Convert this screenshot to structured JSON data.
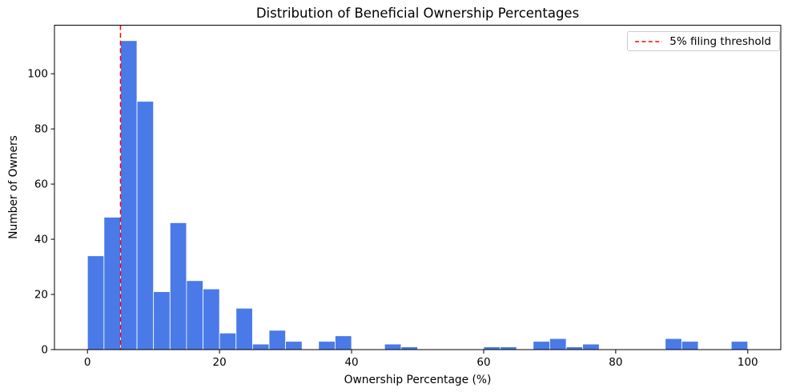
{
  "chart_data": {
    "type": "bar",
    "subtype": "histogram",
    "title": "Distribution of Beneficial Ownership Percentages",
    "xlabel": "Ownership Percentage (%)",
    "ylabel": "Number of Owners",
    "bin_start": 0,
    "bin_width": 2.5,
    "counts": [
      34,
      48,
      112,
      90,
      21,
      46,
      25,
      22,
      6,
      15,
      2,
      7,
      3,
      0,
      3,
      5,
      0,
      0,
      2,
      1,
      0,
      0,
      0,
      0,
      1,
      1,
      0,
      3,
      4,
      1,
      2,
      0,
      0,
      0,
      0,
      4,
      3,
      0,
      0,
      3
    ],
    "x_ticks": [
      0,
      20,
      40,
      60,
      80,
      100
    ],
    "y_ticks": [
      0,
      20,
      40,
      60,
      80,
      100
    ],
    "xlim": [
      -5,
      105
    ],
    "ylim": [
      0,
      117.6
    ],
    "grid": false,
    "bar_color": "#4A7AE8",
    "bar_edge_color": "#ffffff",
    "threshold": {
      "x": 5,
      "color": "#ff0000",
      "style": "dashed",
      "label": "5% filing threshold"
    },
    "legend": {
      "position": "upper right",
      "entries": [
        {
          "label": "5% filing threshold",
          "color": "#ff0000",
          "dash": true
        }
      ]
    }
  }
}
